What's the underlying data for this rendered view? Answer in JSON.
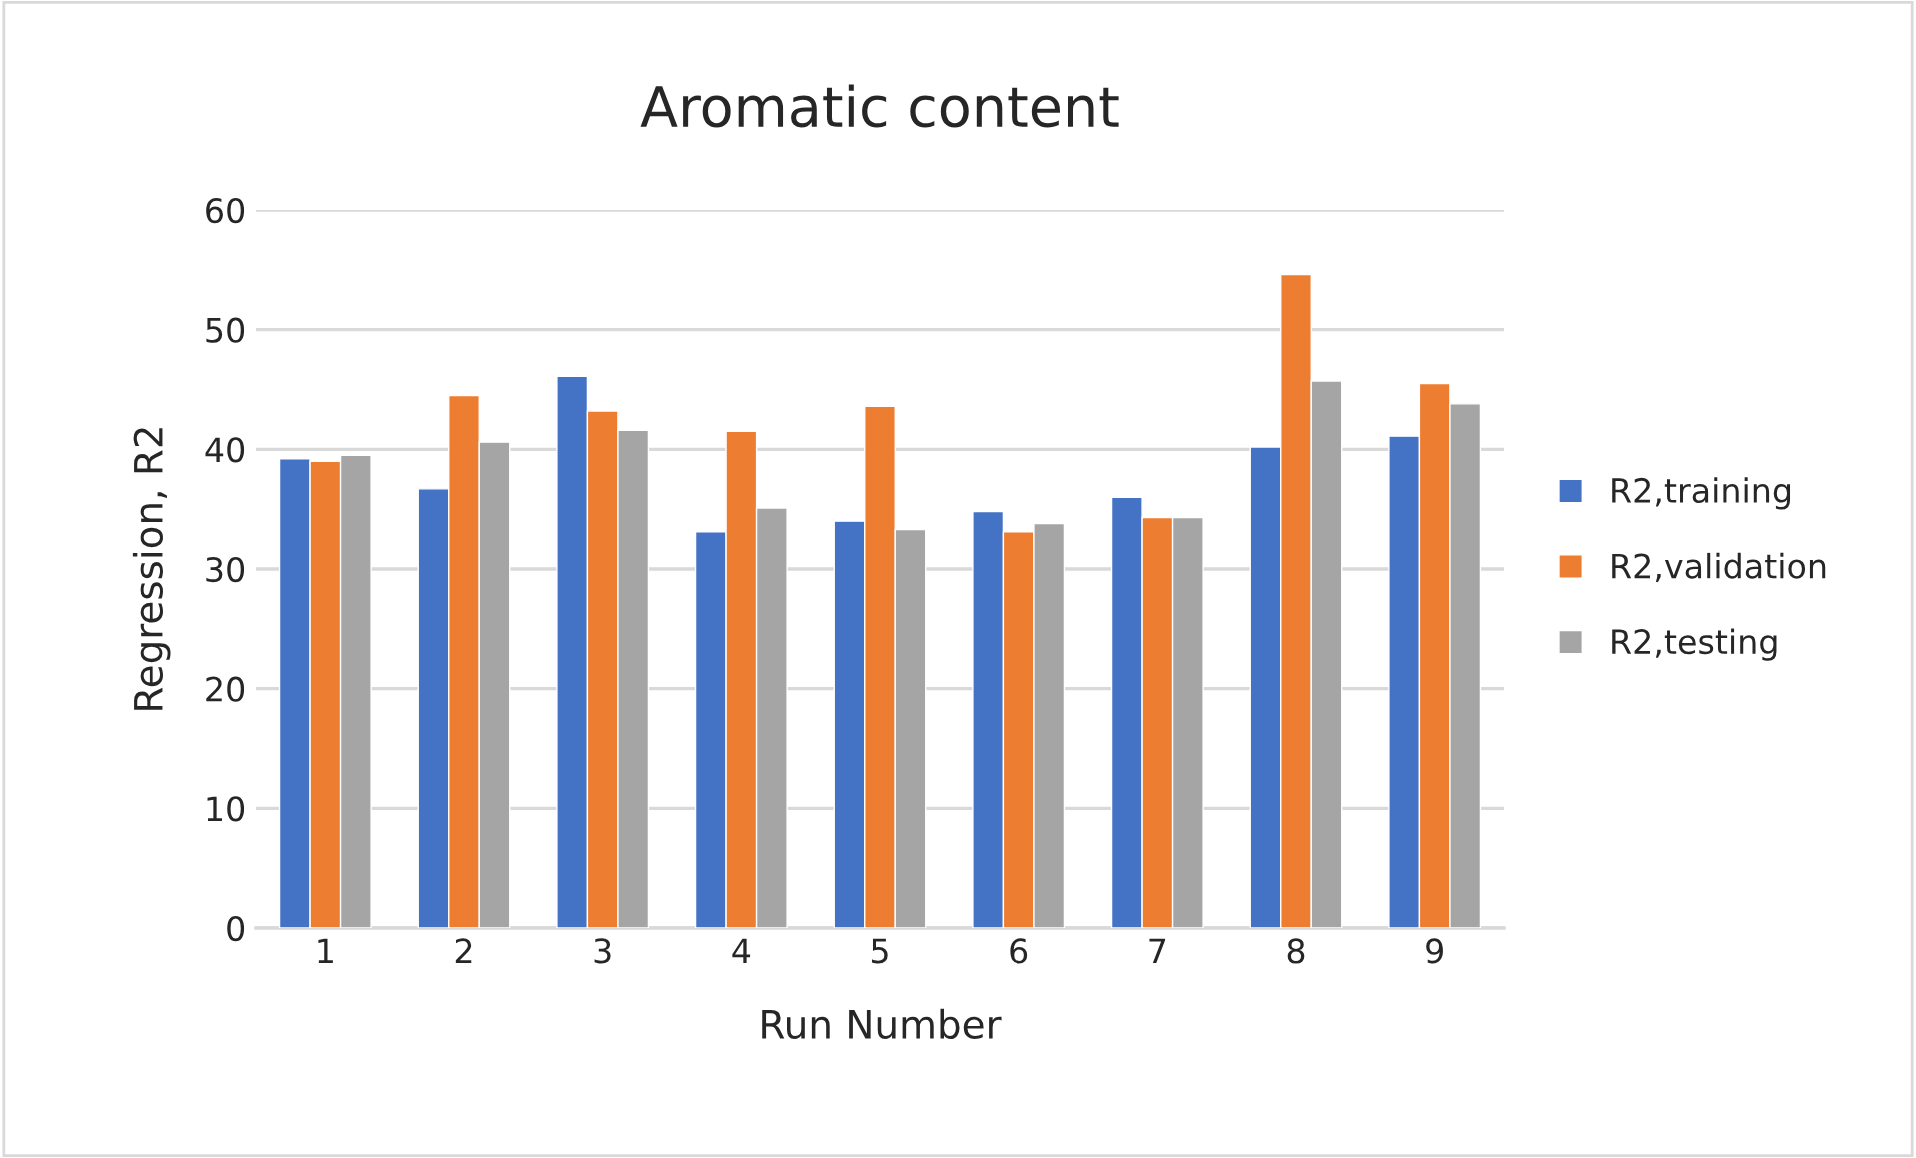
{
  "chart_data": {
    "type": "bar",
    "title": "Aromatic content",
    "xlabel": "Run Number",
    "ylabel": "Regression, R2",
    "categories": [
      "1",
      "2",
      "3",
      "4",
      "5",
      "6",
      "7",
      "8",
      "9"
    ],
    "series": [
      {
        "name": "R2,training",
        "color": "#4472c4",
        "values": [
          39.2,
          36.7,
          46.1,
          33.1,
          34.0,
          34.8,
          36.0,
          40.2,
          41.1
        ]
      },
      {
        "name": "R2,validation",
        "color": "#ed7d31",
        "values": [
          39.0,
          44.5,
          43.2,
          41.5,
          43.6,
          33.1,
          34.3,
          54.6,
          45.5
        ]
      },
      {
        "name": "R2,testing",
        "color": "#a5a5a5",
        "values": [
          39.5,
          40.6,
          41.6,
          35.1,
          33.3,
          33.8,
          34.3,
          45.7,
          43.8
        ]
      }
    ],
    "ylim": [
      0,
      60
    ],
    "yticks": [
      0,
      10,
      20,
      30,
      40,
      50,
      60
    ],
    "grid": "y",
    "legend": "right"
  }
}
